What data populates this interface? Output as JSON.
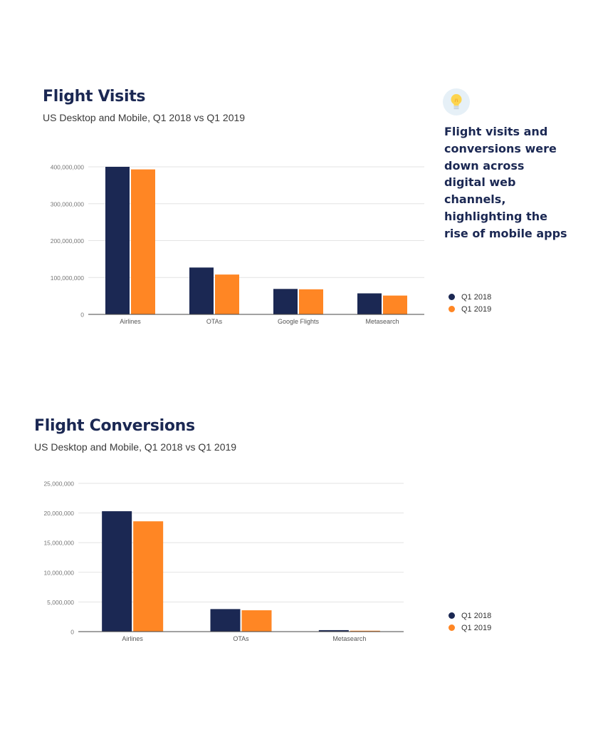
{
  "colors": {
    "q1_2018": "#1b2853",
    "q1_2019": "#ff8624",
    "title": "#1b2853"
  },
  "insight": {
    "icon": "lightbulb-icon",
    "text": "Flight visits and conversions were down across digital web channels, highlighting the rise of mobile apps"
  },
  "chart_data": [
    {
      "type": "bar",
      "title": "Flight Visits",
      "subtitle": "US Desktop and Mobile, Q1 2018 vs Q1 2019",
      "categories": [
        "Airlines",
        "OTAs",
        "Google Flights",
        "Metasearch"
      ],
      "series": [
        {
          "name": "Q1 2018",
          "values": [
            400000000,
            127000000,
            69000000,
            57000000
          ]
        },
        {
          "name": "Q1 2019",
          "values": [
            393000000,
            108000000,
            68000000,
            51000000
          ]
        }
      ],
      "yticks": [
        0,
        100000000,
        200000000,
        300000000,
        400000000
      ],
      "ytick_labels": [
        "0",
        "100,000,000",
        "200,000,000",
        "300,000,000",
        "400,000,000"
      ],
      "ylim": [
        0,
        400000000
      ],
      "grid": true,
      "legend": "right"
    },
    {
      "type": "bar",
      "title": "Flight Conversions",
      "subtitle": "US Desktop and Mobile, Q1 2018 vs Q1 2019",
      "categories": [
        "Airlines",
        "OTAs",
        "Metasearch"
      ],
      "series": [
        {
          "name": "Q1 2018",
          "values": [
            20300000,
            3800000,
            250000
          ]
        },
        {
          "name": "Q1 2019",
          "values": [
            18600000,
            3600000,
            150000
          ]
        }
      ],
      "yticks": [
        0,
        5000000,
        10000000,
        15000000,
        20000000,
        25000000
      ],
      "ytick_labels": [
        "0",
        "5,000,000",
        "10,000,000",
        "15,000,000",
        "20,000,000",
        "25,000,000"
      ],
      "ylim": [
        0,
        25000000
      ],
      "grid": true,
      "legend": "right"
    }
  ]
}
